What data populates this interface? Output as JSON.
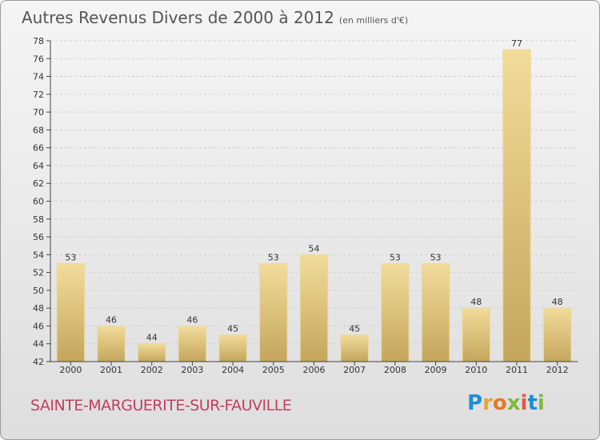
{
  "header": {
    "title": "Autres Revenus Divers de 2000 à 2012",
    "unit": "(en milliers d'€)"
  },
  "footer": {
    "city": "SAINTE-MARGUERITE-SUR-FAUVILLE",
    "logo": "Proxiti"
  },
  "colors": {
    "bar_light": "#f2dc9a",
    "bar_dark": "#c4a65c",
    "axis": "#444444",
    "grid": "#cfcfcf",
    "city": "#c0405f"
  },
  "chart_data": {
    "type": "bar",
    "title": "Autres Revenus Divers de 2000 à 2012",
    "xlabel": "",
    "ylabel": "",
    "categories": [
      "2000",
      "2001",
      "2002",
      "2003",
      "2004",
      "2005",
      "2006",
      "2007",
      "2008",
      "2009",
      "2010",
      "2011",
      "2012"
    ],
    "values": [
      53,
      46,
      44,
      46,
      45,
      53,
      54,
      45,
      53,
      53,
      48,
      77,
      48
    ],
    "ylim": [
      42,
      78
    ],
    "yticks": [
      42,
      44,
      46,
      48,
      50,
      52,
      54,
      56,
      58,
      60,
      62,
      64,
      66,
      68,
      70,
      72,
      74,
      76,
      78
    ],
    "grid": true,
    "data_labels": true
  }
}
